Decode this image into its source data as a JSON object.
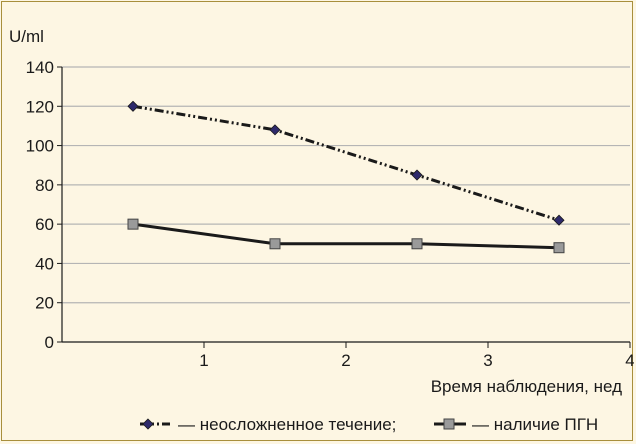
{
  "chart_data": {
    "type": "line",
    "title": "",
    "ylabel": "U/ml",
    "xlabel": "Время наблюдения, нед",
    "xlim": [
      0,
      4
    ],
    "ylim": [
      0,
      140
    ],
    "x_ticks": [
      1,
      2,
      3,
      4
    ],
    "y_ticks": [
      0,
      20,
      40,
      60,
      80,
      100,
      120,
      140
    ],
    "grid": "horizontal",
    "legend_position": "bottom",
    "series": [
      {
        "name": "— неосложненное течение;",
        "style": "dash-dot",
        "marker": "diamond",
        "color": "#1a1a1a",
        "marker_color": "#2e2a6b",
        "x": [
          0.5,
          1.5,
          2.5,
          3.5
        ],
        "values": [
          120,
          108,
          85,
          62
        ]
      },
      {
        "name": "— наличие ПГН",
        "style": "solid",
        "marker": "square",
        "color": "#1a1a1a",
        "marker_color": "#9a9a9a",
        "x": [
          0.5,
          1.5,
          2.5,
          3.5
        ],
        "values": [
          60,
          50,
          50,
          48
        ]
      }
    ]
  },
  "colors": {
    "background": "#fdf6e3",
    "frame": "#a88f3c",
    "grid": "#b5b5b5",
    "axis": "#1a1a1a"
  }
}
